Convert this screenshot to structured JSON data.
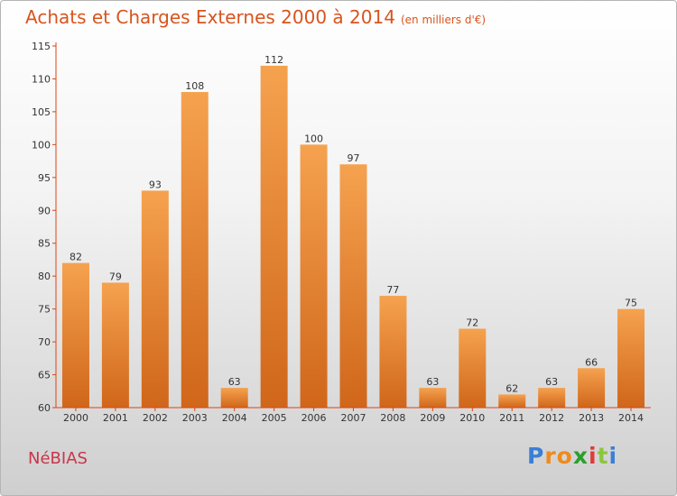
{
  "title": "Achats et Charges Externes 2000 à 2014",
  "title_sub": "(en milliers d'€)",
  "commune": "NéBIAS",
  "logo": {
    "letters": [
      "P",
      "r",
      "o",
      "x",
      "i",
      "t",
      "i"
    ],
    "colors": [
      "#3a7fd5",
      "#f08a1c",
      "#f08a1c",
      "#2c9e2c",
      "#e03b3b",
      "#8cc63f",
      "#3a7fd5"
    ]
  },
  "colors": {
    "title": "#d9541e",
    "commune": "#c8364a",
    "bar_light": "#f5a24f",
    "bar_dark": "#d0661a",
    "axis": "#dd4411"
  },
  "chart_data": {
    "type": "bar",
    "categories": [
      "2000",
      "2001",
      "2002",
      "2003",
      "2004",
      "2005",
      "2006",
      "2007",
      "2008",
      "2009",
      "2010",
      "2011",
      "2012",
      "2013",
      "2014"
    ],
    "values": [
      82,
      79,
      93,
      108,
      63,
      112,
      100,
      97,
      77,
      63,
      72,
      62,
      63,
      66,
      75
    ],
    "ylim": [
      60,
      115
    ],
    "yticks": [
      60,
      65,
      70,
      75,
      80,
      85,
      90,
      95,
      100,
      105,
      110,
      115
    ],
    "grid": false,
    "legend": "none"
  }
}
